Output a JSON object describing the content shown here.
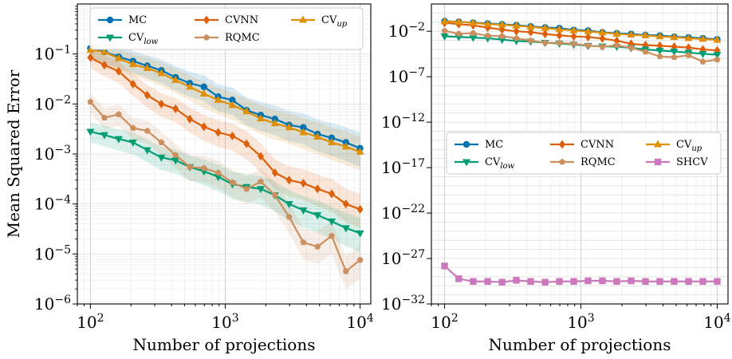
{
  "chart_data": [
    {
      "type": "line",
      "panel": "left",
      "title": "",
      "xlabel": "Number of projections",
      "ylabel": "Mean Squared Error",
      "xscale": "log",
      "yscale": "log",
      "xlim": [
        80,
        12000
      ],
      "ylim": [
        1e-06,
        1
      ],
      "xticks": [
        {
          "value": 100,
          "base": "10",
          "exp": "2"
        },
        {
          "value": 1000,
          "base": "10",
          "exp": "3"
        },
        {
          "value": 10000,
          "base": "10",
          "exp": "4"
        }
      ],
      "yticks": [
        {
          "value": 1e-06,
          "base": "10",
          "exp": "−6"
        },
        {
          "value": 1e-05,
          "base": "10",
          "exp": "−5"
        },
        {
          "value": 0.0001,
          "base": "10",
          "exp": "−4"
        },
        {
          "value": 0.001,
          "base": "10",
          "exp": "−3"
        },
        {
          "value": 0.01,
          "base": "10",
          "exp": "−2"
        },
        {
          "value": 0.1,
          "base": "10",
          "exp": "−1"
        }
      ],
      "grid": true,
      "legend": {
        "position": "top",
        "columns": 3
      },
      "x": [
        100,
        127,
        162,
        207,
        264,
        336,
        428,
        546,
        695,
        886,
        1129,
        1438,
        1833,
        2336,
        2976,
        3793,
        4833,
        6158,
        7847,
        10000
      ],
      "series": [
        {
          "name": "MC",
          "sub": "",
          "color": "#0173b2",
          "marker": "circle",
          "band": true,
          "values": [
            0.13,
            0.11,
            0.088,
            0.072,
            0.058,
            0.047,
            0.034,
            0.026,
            0.022,
            0.014,
            0.012,
            0.0075,
            0.006,
            0.005,
            0.0038,
            0.0034,
            0.0025,
            0.0021,
            0.0017,
            0.0013
          ]
        },
        {
          "name": "CVNN",
          "sub": "",
          "color": "#de5f0a",
          "marker": "diamond",
          "band": true,
          "values": [
            0.085,
            0.06,
            0.045,
            0.025,
            0.015,
            0.01,
            0.008,
            0.005,
            0.0035,
            0.0027,
            0.0023,
            0.0016,
            0.0009,
            0.00042,
            0.0003,
            0.00026,
            0.0002,
            0.00016,
            0.0001,
            7.8e-05
          ]
        },
        {
          "name": "CV",
          "sub": "up",
          "color": "#de8f05",
          "marker": "triangle-up",
          "band": true,
          "values": [
            0.12,
            0.11,
            0.082,
            0.062,
            0.052,
            0.041,
            0.03,
            0.022,
            0.016,
            0.012,
            0.0095,
            0.0071,
            0.0051,
            0.0041,
            0.0034,
            0.0027,
            0.0022,
            0.0017,
            0.0014,
            0.0011
          ]
        },
        {
          "name": "CV",
          "sub": "low",
          "color": "#029e73",
          "marker": "triangle-down",
          "band": true,
          "values": [
            0.0028,
            0.0024,
            0.002,
            0.0017,
            0.0012,
            0.00085,
            0.00075,
            0.00055,
            0.00045,
            0.00035,
            0.00025,
            0.00022,
            0.0002,
            0.00015,
            0.0001,
            7.5e-05,
            6e-05,
            4.5e-05,
            3.3e-05,
            2.6e-05
          ]
        },
        {
          "name": "RQMC",
          "sub": "",
          "color": "#cc8f5f",
          "marker": "pentagon",
          "band": true,
          "values": [
            0.011,
            0.0053,
            0.0062,
            0.0033,
            0.0029,
            0.0017,
            0.00095,
            0.00055,
            0.00052,
            0.00042,
            0.00027,
            0.0002,
            0.00028,
            0.00015,
            5.5e-05,
            1.7e-05,
            1.4e-05,
            2.3e-05,
            4.5e-06,
            7.6e-06
          ]
        }
      ]
    },
    {
      "type": "line",
      "panel": "right",
      "title": "",
      "xlabel": "Number of projections",
      "ylabel": "",
      "xscale": "log",
      "yscale": "log",
      "xlim": [
        80,
        12000
      ],
      "ylim": [
        1e-32,
        10.0
      ],
      "xticks": [
        {
          "value": 100,
          "base": "10",
          "exp": "2"
        },
        {
          "value": 1000,
          "base": "10",
          "exp": "3"
        },
        {
          "value": 10000,
          "base": "10",
          "exp": "4"
        }
      ],
      "yticks": [
        {
          "value": 1e-32,
          "base": "10",
          "exp": "−32"
        },
        {
          "value": 1e-27,
          "base": "10",
          "exp": "−27"
        },
        {
          "value": 1e-22,
          "base": "10",
          "exp": "−22"
        },
        {
          "value": 1e-17,
          "base": "10",
          "exp": "−17"
        },
        {
          "value": 1e-12,
          "base": "10",
          "exp": "−12"
        },
        {
          "value": 1e-07,
          "base": "10",
          "exp": "−7"
        },
        {
          "value": 0.01,
          "base": "10",
          "exp": "−2"
        }
      ],
      "grid": true,
      "legend": {
        "position": "center",
        "columns": 3
      },
      "x": [
        100,
        127,
        162,
        207,
        264,
        336,
        428,
        546,
        695,
        886,
        1129,
        1438,
        1833,
        2336,
        2976,
        3793,
        4833,
        6158,
        7847,
        10000
      ],
      "series": [
        {
          "name": "MC",
          "sub": "",
          "color": "#0173b2",
          "marker": "circle",
          "band": false,
          "values": [
            0.13,
            0.11,
            0.088,
            0.072,
            0.058,
            0.047,
            0.034,
            0.026,
            0.022,
            0.014,
            0.012,
            0.0075,
            0.006,
            0.005,
            0.0038,
            0.0034,
            0.0025,
            0.0021,
            0.0017,
            0.0013
          ]
        },
        {
          "name": "CVNN",
          "sub": "",
          "color": "#de5f0a",
          "marker": "diamond",
          "band": false,
          "values": [
            0.085,
            0.06,
            0.045,
            0.025,
            0.015,
            0.01,
            0.008,
            0.005,
            0.0035,
            0.0027,
            0.0023,
            0.0016,
            0.0009,
            0.00042,
            0.0003,
            0.00026,
            0.0002,
            0.00016,
            0.0001,
            7.8e-05
          ]
        },
        {
          "name": "CV",
          "sub": "up",
          "color": "#de8f05",
          "marker": "triangle-up",
          "band": false,
          "values": [
            0.12,
            0.11,
            0.082,
            0.062,
            0.052,
            0.041,
            0.03,
            0.022,
            0.016,
            0.012,
            0.0095,
            0.0071,
            0.0051,
            0.0041,
            0.0034,
            0.0027,
            0.0022,
            0.0017,
            0.0014,
            0.0011
          ]
        },
        {
          "name": "CV",
          "sub": "low",
          "color": "#029e73",
          "marker": "triangle-down",
          "band": false,
          "values": [
            0.0028,
            0.0024,
            0.002,
            0.0017,
            0.0012,
            0.00085,
            0.00075,
            0.00055,
            0.00045,
            0.00035,
            0.00025,
            0.00022,
            0.0002,
            0.00015,
            0.0001,
            7.5e-05,
            6e-05,
            4.5e-05,
            3.3e-05,
            2.6e-05
          ]
        },
        {
          "name": "RQMC",
          "sub": "",
          "color": "#cc8f5f",
          "marker": "pentagon",
          "band": false,
          "values": [
            0.011,
            0.0053,
            0.0062,
            0.0033,
            0.0029,
            0.0017,
            0.00095,
            0.00055,
            0.00052,
            0.00042,
            0.00027,
            0.0002,
            0.00028,
            0.00015,
            5.5e-05,
            1.7e-05,
            1.4e-05,
            2.3e-05,
            4.5e-06,
            7.6e-06
          ]
        },
        {
          "name": "SHCV",
          "sub": "",
          "color": "#cc78bc",
          "marker": "square",
          "band": false,
          "values": [
            1.5e-28,
            6e-30,
            3e-30,
            3e-30,
            2.5e-30,
            4e-30,
            3e-30,
            2.5e-30,
            3e-30,
            3e-30,
            3.5e-30,
            3.5e-30,
            3e-30,
            3.5e-30,
            3e-30,
            3e-30,
            3e-30,
            3e-30,
            3e-30,
            3e-30
          ]
        }
      ]
    }
  ]
}
